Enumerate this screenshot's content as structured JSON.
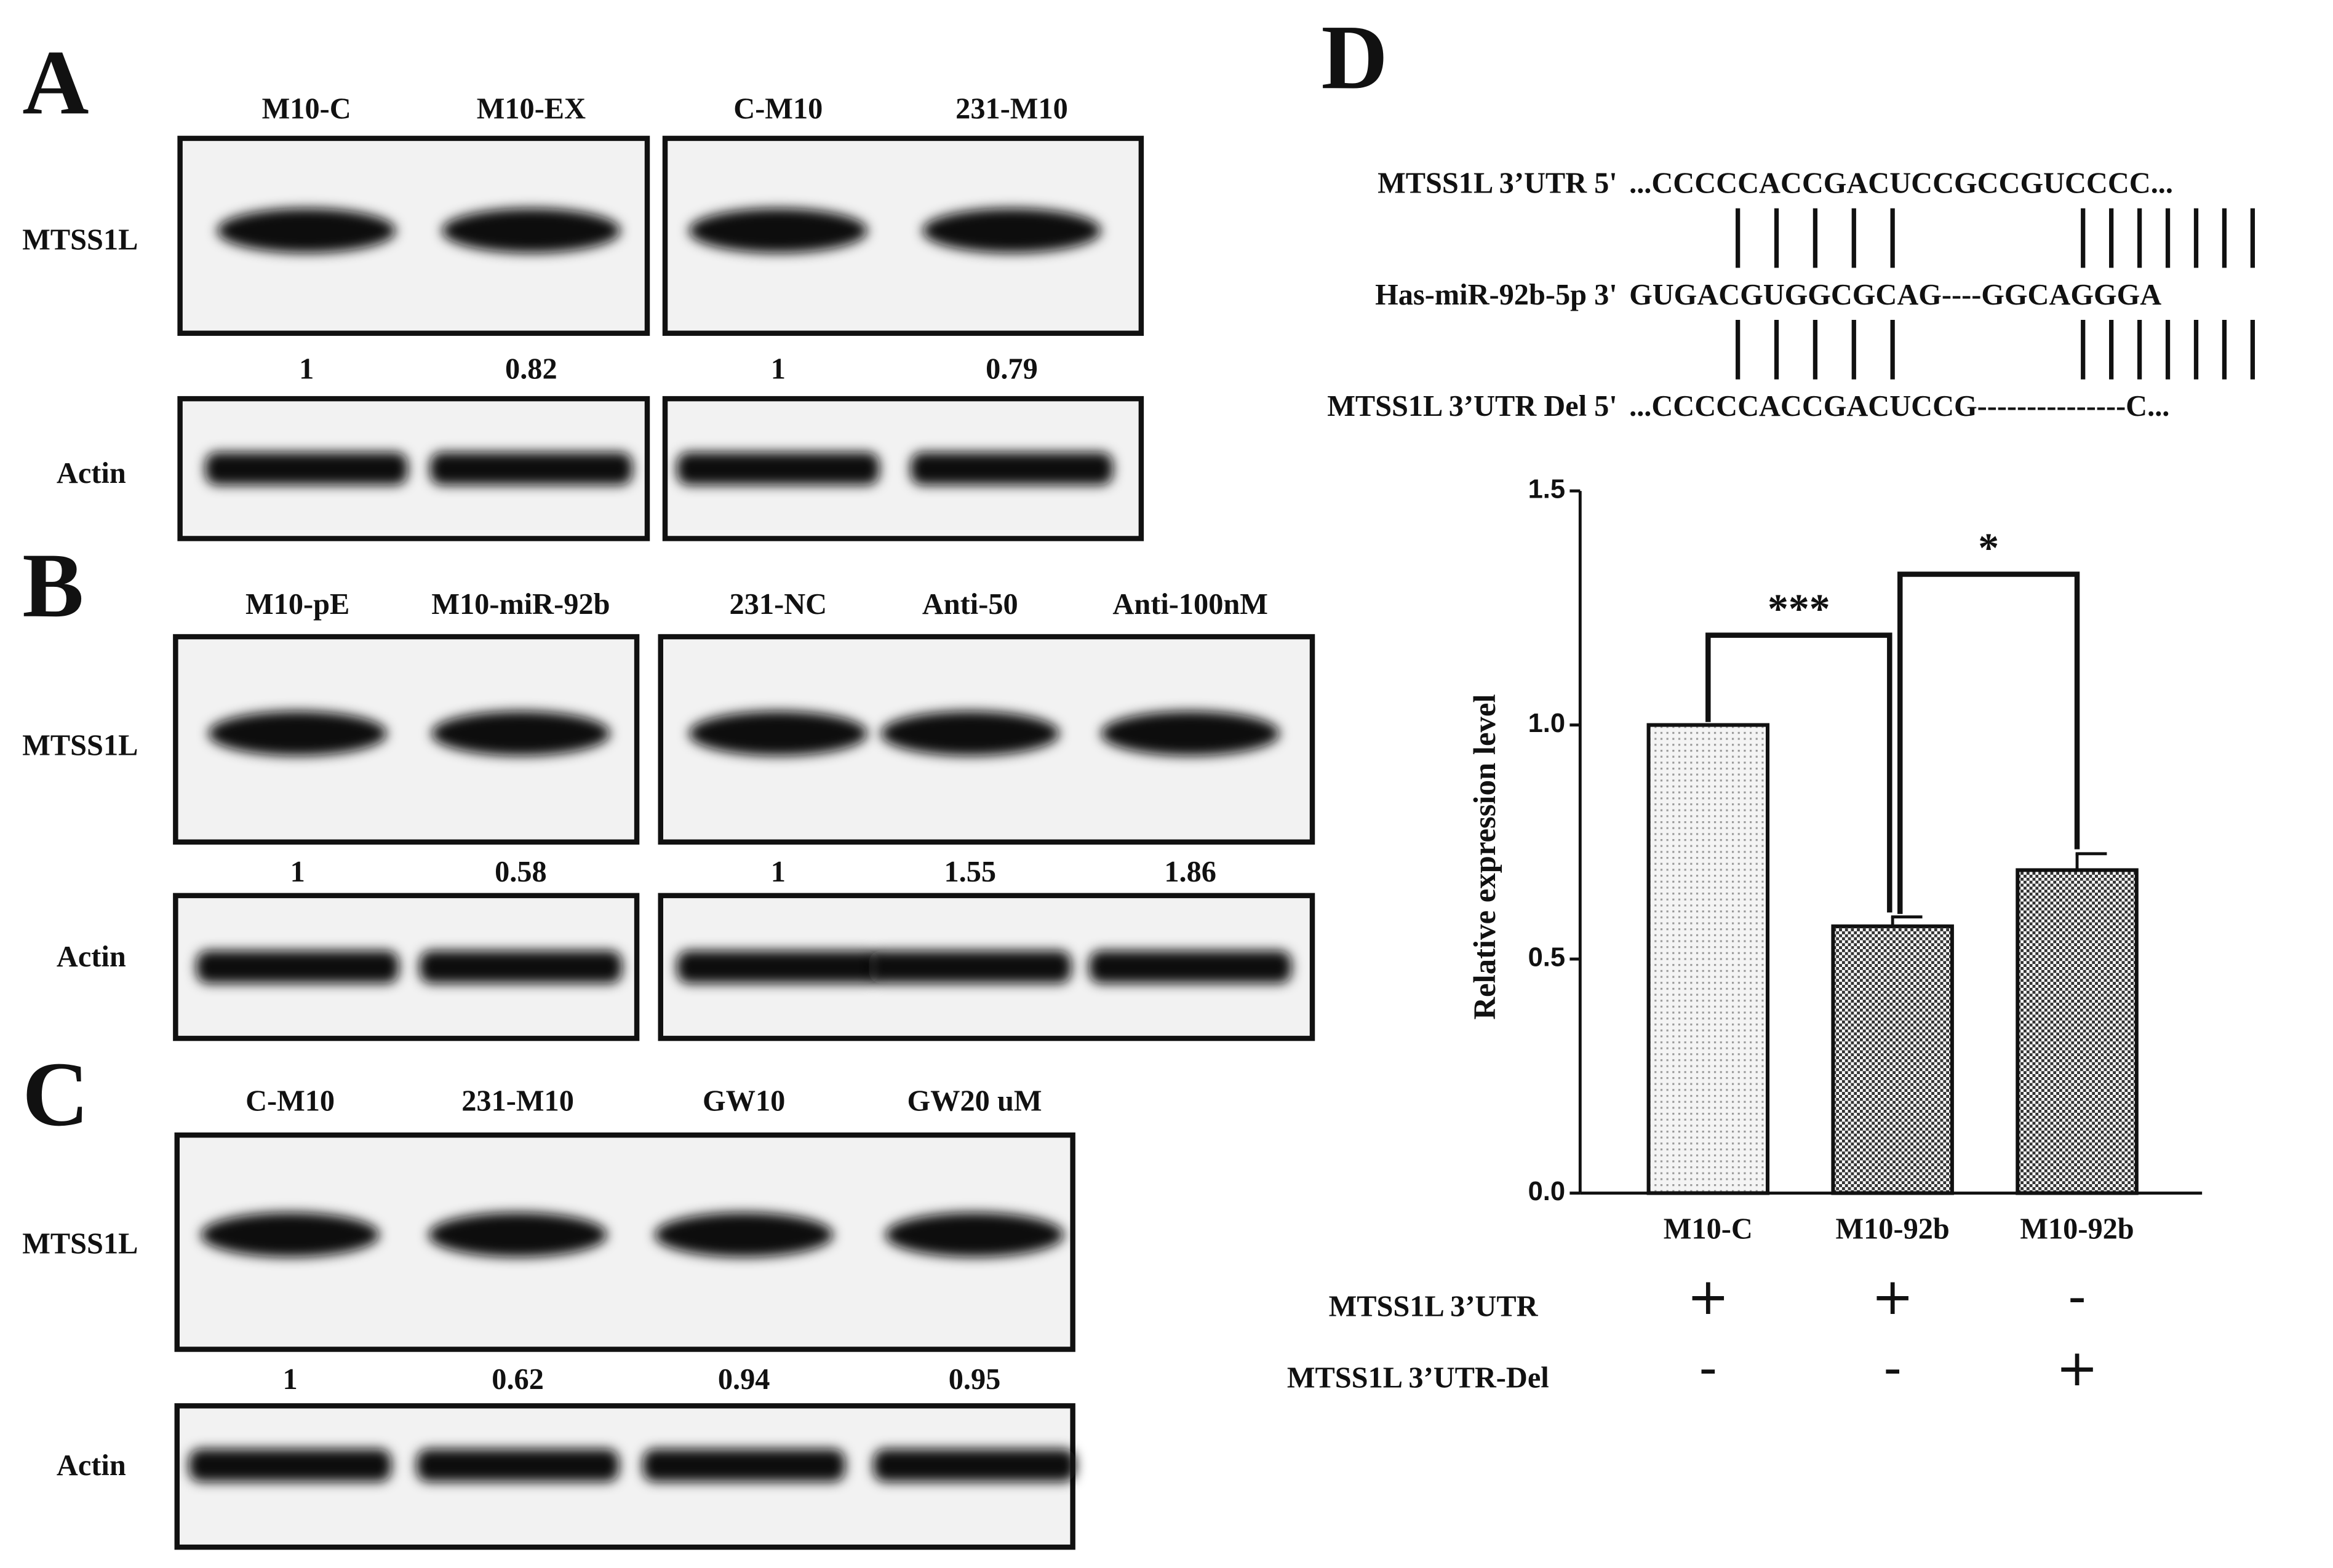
{
  "panels": [
    {
      "letter": "A",
      "rows": [
        "MTSS1L",
        "Actin"
      ],
      "groups": [
        {
          "lanes": [
            "M10-C",
            "M10-EX"
          ],
          "ratios": [
            1,
            0.82
          ]
        },
        {
          "lanes": [
            "C-M10",
            "231-M10"
          ],
          "ratios": [
            1,
            0.79
          ]
        }
      ]
    },
    {
      "letter": "B",
      "rows": [
        "MTSS1L",
        "Actin"
      ],
      "groups": [
        {
          "lanes": [
            "M10-pE",
            "M10-miR-92b"
          ],
          "ratios": [
            1,
            0.58
          ]
        },
        {
          "lanes": [
            "231-NC",
            "Anti-50",
            "Anti-100nM"
          ],
          "ratios": [
            1,
            1.55,
            1.86
          ]
        }
      ]
    },
    {
      "letter": "C",
      "rows": [
        "MTSS1L",
        "Actin"
      ],
      "groups": [
        {
          "lanes": [
            "C-M10",
            "231-M10",
            "GW10",
            "GW20 uM"
          ],
          "ratios": [
            1,
            0.62,
            0.94,
            0.95
          ]
        }
      ]
    }
  ],
  "sequence": {
    "letter": "D",
    "rows": [
      {
        "label": "MTSS1L 3’UTR 5'",
        "seq": "...CCCCCACCGACUCCGCCGUCCCC..."
      },
      {
        "label": "Has-miR-92b-5p 3'",
        "seq": "GUGACGUGGCGCAG----GGCAGGGA"
      },
      {
        "label": "MTSS1L 3’UTR Del 5'",
        "seq": "...CCCCCACCGACUCCG---------------C..."
      }
    ]
  },
  "chart_data": {
    "type": "bar",
    "ylabel": "Relative expression level",
    "categories": [
      "M10-C",
      "M10-92b",
      "M10-92b"
    ],
    "values": [
      1.0,
      0.57,
      0.69
    ],
    "errors": [
      0,
      0.02,
      0.035
    ],
    "ylim": [
      0,
      1.5
    ],
    "yticks": [
      {
        "value": 0,
        "label": "0.0"
      },
      {
        "value": 0.5,
        "label": "0.5"
      },
      {
        "value": 1,
        "label": "1.0"
      },
      {
        "value": 1.5,
        "label": "1.5"
      }
    ],
    "annotations": [
      "***",
      "*"
    ],
    "conditions": [
      {
        "label": "MTSS1L 3’UTR",
        "marks": [
          "+",
          "+",
          "-"
        ]
      },
      {
        "label": "MTSS1L 3’UTR-Del",
        "marks": [
          "-",
          "-",
          "+"
        ]
      }
    ]
  }
}
